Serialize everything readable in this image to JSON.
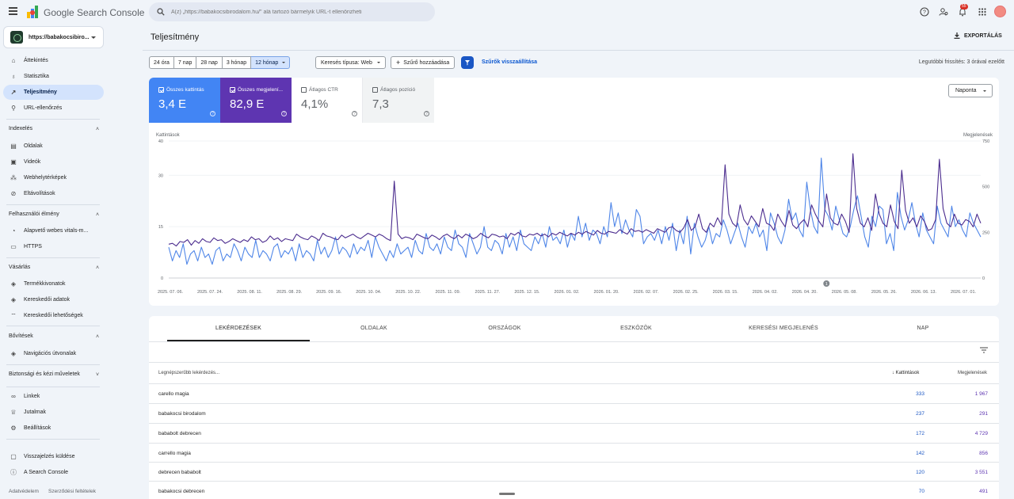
{
  "app": {
    "name": "Google Search Console"
  },
  "search": {
    "placeholder": "A(z) „https://babakocsibirodalom.hu/\" alá tartozó bármelyik URL-t ellenőrizheti"
  },
  "topbar": {
    "notification_count": "55"
  },
  "property": {
    "label": "https://babakocsibiro..."
  },
  "sidebar": {
    "main_items": [
      {
        "label": "Áttekintés",
        "icon": "home-icon"
      },
      {
        "label": "Statisztika",
        "icon": "lightbulb-icon"
      },
      {
        "label": "Teljesítmény",
        "icon": "trending-up-icon",
        "active": true
      },
      {
        "label": "URL-ellenőrzés",
        "icon": "search-icon"
      }
    ],
    "sections": [
      {
        "title": "Indexelés",
        "items": [
          "Oldalak",
          "Videók",
          "Webhelytérképek",
          "Eltávolítások"
        ]
      },
      {
        "title": "Felhasználói élmény",
        "items": [
          "Alapvető webes vitals-m...",
          "HTTPS"
        ]
      },
      {
        "title": "Vásárlás",
        "items": [
          "Termékkivonatok",
          "Kereskedői adatok",
          "Kereskedői lehetőségek"
        ]
      },
      {
        "title": "Bővítések",
        "items": [
          "Navigációs útvonalak"
        ]
      },
      {
        "title": "Biztonsági és kézi műveletek",
        "items": []
      }
    ],
    "bottom_items": [
      "Linkek",
      "Jutalmak",
      "Beállítások"
    ],
    "footer_items": [
      "Visszajelzés küldése",
      "A Search Console"
    ],
    "footer_links": [
      "Adatvédelem",
      "Szerződési feltételek"
    ]
  },
  "page": {
    "title": "Teljesítmény",
    "export_label": "EXPORTÁLÁS",
    "date_ranges": [
      "24 óra",
      "7 nap",
      "28 nap",
      "3 hónap",
      "12 hónap"
    ],
    "selected_range": "12 hónap",
    "search_type": "Keresés típusa: Web",
    "add_filter": "Szűrő hozzáadása",
    "reset_filters": "Szűrők visszaállítása",
    "last_update": "Legutóbbi frissítés: 3 órával ezelőtt"
  },
  "metrics": [
    {
      "label": "Összes kattintás",
      "value": "3,4 E",
      "checked": true,
      "color": "#4285f4"
    },
    {
      "label": "Összes megjelení...",
      "value": "82,9 E",
      "checked": true,
      "color": "#5e35b1"
    },
    {
      "label": "Átlagos CTR",
      "value": "4,1%",
      "checked": false,
      "color": "#ffffff"
    },
    {
      "label": "Átlagos pozíció",
      "value": "7,3",
      "checked": false,
      "color": "#f1f3f4"
    }
  ],
  "granularity": "Naponta",
  "chart_data": {
    "type": "line",
    "left_axis_label": "Kattintások",
    "right_axis_label": "Megjelenések",
    "left_ticks": [
      "40",
      "30",
      "15",
      "0"
    ],
    "right_ticks": [
      "750",
      "500",
      "250",
      "0"
    ],
    "ylim_left": [
      0,
      40
    ],
    "ylim_right": [
      0,
      750
    ],
    "x_labels": [
      "2025. 07. 06.",
      "2025. 07. 24.",
      "2025. 08. 11.",
      "2025. 08. 29.",
      "2025. 09. 16.",
      "2025. 10. 04.",
      "2025. 10. 22.",
      "2025. 11. 09.",
      "2025. 11. 27.",
      "2025. 12. 15.",
      "2026. 01. 02.",
      "2026. 01. 20.",
      "2026. 02. 07.",
      "2026. 02. 25.",
      "2026. 03. 15.",
      "2026. 04. 02.",
      "2026. 04. 20.",
      "2026. 05. 08.",
      "2026. 05. 26.",
      "2026. 06. 13.",
      "2026. 07. 01."
    ],
    "annotation": "1",
    "series": [
      {
        "name": "Kattintások",
        "axis": "left",
        "color": "#4f86e8",
        "values": [
          9,
          5,
          8,
          6,
          10,
          4,
          7,
          8,
          5,
          9,
          6,
          7,
          4,
          8,
          9,
          5,
          7,
          6,
          10,
          8,
          5,
          9,
          7,
          6,
          11,
          6,
          8,
          7,
          5,
          9,
          10,
          6,
          8,
          7,
          9,
          5,
          10,
          6,
          8,
          7,
          5,
          11,
          7,
          9,
          6,
          8,
          12,
          7,
          9,
          8,
          6,
          10,
          7,
          9,
          8,
          11,
          6,
          12,
          9,
          7,
          5,
          8,
          6,
          10,
          7,
          8,
          9,
          6,
          11,
          8,
          7,
          13,
          9,
          8,
          10,
          7,
          12,
          9,
          8,
          14,
          10,
          9,
          6,
          13,
          10,
          7,
          9,
          15,
          9,
          8,
          11,
          10,
          7,
          13,
          9,
          12,
          8,
          14,
          10,
          9,
          8,
          12,
          10,
          13,
          9,
          15,
          11,
          12,
          10,
          14,
          9,
          13,
          11,
          18,
          12,
          16,
          11,
          14,
          13,
          10,
          15,
          12,
          22,
          15,
          19,
          13,
          17,
          14,
          12,
          20,
          18,
          10,
          12,
          13,
          11,
          14,
          10,
          15,
          11,
          16,
          8,
          14,
          10,
          18,
          7,
          16,
          12,
          9,
          11,
          15,
          10,
          13,
          12,
          17,
          14,
          10,
          13,
          16,
          12,
          9,
          15,
          13,
          16,
          12,
          14,
          8,
          19,
          16,
          12,
          10,
          14,
          23,
          17,
          19,
          14,
          12,
          28,
          20,
          15,
          13,
          35,
          20,
          18,
          14,
          21,
          17,
          13,
          12,
          15,
          20,
          24,
          18,
          12,
          9,
          18,
          15,
          21,
          20,
          10,
          13,
          8,
          25,
          18,
          14,
          17,
          22,
          16,
          12,
          19,
          14,
          12,
          10,
          21,
          16,
          14,
          12,
          21,
          15,
          17,
          14,
          12,
          19,
          16,
          14,
          12
        ]
      },
      {
        "name": "Megjelenések",
        "axis": "right",
        "color": "#4b2c8e",
        "values": [
          185,
          190,
          175,
          200,
          195,
          210,
          180,
          205,
          190,
          215,
          200,
          195,
          220,
          205,
          210,
          190,
          200,
          215,
          205,
          195,
          210,
          200,
          225,
          210,
          215,
          195,
          205,
          230,
          210,
          220,
          200,
          215,
          210,
          205,
          240,
          225,
          215,
          210,
          230,
          220,
          205,
          245,
          230,
          225,
          215,
          210,
          235,
          220,
          230,
          240,
          225,
          215,
          230,
          245,
          235,
          225,
          240,
          230,
          215,
          205,
          530,
          240,
          215,
          225,
          220,
          210,
          240,
          230,
          220,
          215,
          235,
          225,
          210,
          230,
          240,
          225,
          215,
          235,
          220,
          240,
          230,
          215,
          225,
          245,
          230,
          220,
          240,
          235,
          225,
          230,
          215,
          245,
          235,
          250,
          230,
          225,
          240,
          235,
          245,
          230,
          240,
          225,
          245,
          235,
          250,
          240,
          230,
          245,
          235,
          250,
          240,
          255,
          245,
          235,
          260,
          245,
          240,
          255,
          250,
          245,
          265,
          250,
          240,
          270,
          255,
          260,
          250,
          265,
          255,
          245,
          270,
          260,
          250,
          275,
          280,
          260,
          250,
          275,
          320,
          260,
          280,
          350,
          270,
          250,
          300,
          280,
          330,
          290,
          620,
          350,
          300,
          280,
          400,
          320,
          290,
          340,
          310,
          280,
          380,
          300,
          290,
          260,
          350,
          310,
          280,
          370,
          290,
          270,
          300,
          320,
          280,
          400,
          350,
          310,
          280,
          460,
          330,
          300,
          290,
          350,
          310,
          250,
          680,
          380,
          300,
          280,
          330,
          260,
          460,
          350,
          300,
          280,
          400,
          310,
          270,
          590,
          370,
          300,
          330,
          280,
          340,
          310,
          260,
          270,
          320,
          650,
          380,
          300,
          280,
          350,
          300,
          290,
          320,
          310,
          280,
          350,
          300
        ]
      }
    ]
  },
  "table": {
    "tabs": [
      "LEKÉRDEZÉSEK",
      "OLDALAK",
      "ORSZÁGOK",
      "ESZKÖZÖK",
      "KERESÉSI MEGJELENÉS",
      "NAP"
    ],
    "col_query": "Legnépszerűbb lekérdezés...",
    "col_clicks": "Kattintások",
    "col_impressions": "Megjelenések",
    "rows": [
      {
        "query": "carello magia",
        "clicks": "333",
        "impressions": "1 967"
      },
      {
        "query": "babakocsi birodalom",
        "clicks": "237",
        "impressions": "291"
      },
      {
        "query": "bababolt debrecen",
        "clicks": "172",
        "impressions": "4 729"
      },
      {
        "query": "carrello magia",
        "clicks": "142",
        "impressions": "856"
      },
      {
        "query": "debrecen bababolt",
        "clicks": "120",
        "impressions": "3 551"
      },
      {
        "query": "babakocsi debrecen",
        "clicks": "70",
        "impressions": "491"
      }
    ]
  }
}
